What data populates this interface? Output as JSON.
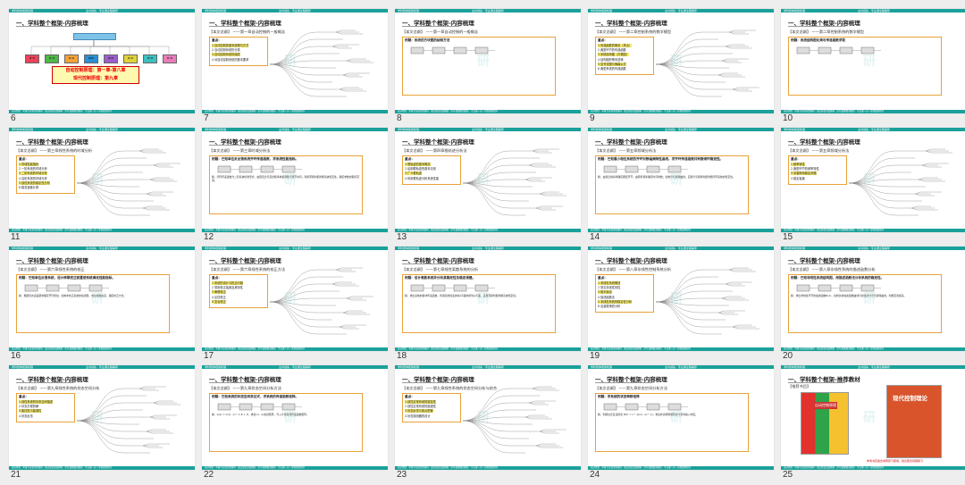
{
  "header": {
    "left": "学科整体框架梳理",
    "mid": "业内领先 · 专业课全程辅导"
  },
  "footer_text": "高分经验 · 考研专业课全程辅导 · 难点知识深度解析 · 历年真题精讲精练 · 专业课一对一全程规划指导",
  "main_title": "一、学科整个框架-内容梳理",
  "slides": [
    {
      "num": "6",
      "title": "一、学科整个框架-内容梳理",
      "red_text": "自动控制原理：第一章-第八章\n现代控制原理：第九章",
      "nodes": [
        "第一章",
        "第二章",
        "第三章",
        "第四章",
        "第五章",
        "第六章",
        "第七章",
        "第八章"
      ]
    },
    {
      "num": "7",
      "sub": "【本文总纲】 ——第一章自动控制的一般概念",
      "box_head": "重点：",
      "lines": [
        "1 自动控制的基本原理与方式",
        "2 自动控制系统的分类",
        "3 自动控制系统的组成",
        "4 对自动控制系统的基本要求"
      ]
    },
    {
      "num": "8",
      "sub": "【本文总纲】 ——第一章自动控制的一般概念",
      "box_head": "例题：系统的方块图的绘制方法"
    },
    {
      "num": "9",
      "sub": "【本文总纲】 ——第二章控制系统的数学模型",
      "box_head": "重点：",
      "lines": [
        "1 传递函数的概念（重点）",
        "2 典型环节的传递函数",
        "3 系统结构图（方框图）",
        "4 结构图的等效变换",
        "5 信号流图与梅森公式",
        "6 典型系统的传递函数"
      ]
    },
    {
      "num": "10",
      "sub": "【本文总纲】 ——第二章控制系统的数学模型",
      "box_head": "例题：系统结构图化简与传递函数求取"
    },
    {
      "num": "11",
      "sub": "【本文总纲】 ——第三章线性系统的时域分析",
      "box_head": "重点：",
      "lines": [
        "1 时域性能指标",
        "2 一阶系统的时域分析",
        "3 二阶系统的时域分析",
        "4 高阶系统的时域分析",
        "5 线性系统的稳定性分析",
        "6 稳态误差计算"
      ]
    },
    {
      "num": "12",
      "sub": "【本文总纲】 ——第三章时域分析法",
      "box_head": "例题：已知单位负反馈系统开环传递函数，求系统性能指标。",
      "para": "解：闭环传递函数为二阶系统标准形式，由阻尼比与自然频率求超调量与调节时间；利用劳斯判据判断系统稳定性，确定参数的取值范围。"
    },
    {
      "num": "13",
      "sub": "【本文总纲】 ——第四章根轨迹分析法",
      "box_head": "重点：",
      "lines": [
        "1 根轨迹的基本概念",
        "2 绘制根轨迹的基本法则",
        "3 广义根轨迹",
        "4 利用根轨迹分析系统性能"
      ]
    },
    {
      "num": "14",
      "sub": "【本文总纲】 ——第五章频域分析法",
      "box_head": "例题：已知最小相位系统的开环对数幅频特性曲线，求开环传递函数并判断闭环稳定性。",
      "para": "解：由渐近线斜率确定典型环节，由转折频率确定时间常数；绘制奈奎斯特曲线，应用奈奎斯特判据判断闭环系统的稳定性。"
    },
    {
      "num": "15",
      "sub": "【本文总纲】 ——第五章频域分析法",
      "box_head": "重点：",
      "lines": [
        "1 频率特性",
        "2 典型环节的频率特性",
        "3 奈奎斯特稳定判据",
        "4 稳定裕度"
      ]
    },
    {
      "num": "16",
      "sub": "【本文总纲】 ——第六章线性系统的校正",
      "box_head": "例题：已知单位反馈系统，设计串联校正装置使系统满足性能指标。",
      "para": "解：根据稳态误差要求确定开环增益，绘制未校正系统的伯德图，求出相角裕度，确定校正方式。"
    },
    {
      "num": "17",
      "sub": "【本文总纲】 ——第六章线性系统的校正方法",
      "box_head": "重点：",
      "lines": [
        "1 系统的设计与校正问题",
        "2 常用校正装置及其特性",
        "3 串联校正",
        "4 反馈校正",
        "5 复合校正"
      ]
    },
    {
      "num": "18",
      "sub": "【本文总纲】 ——第七章线性离散系统的分析",
      "box_head": "例题：设计离散系统并分析其稳定性及稳态误差。",
      "para": "解：求出系统的脉冲传递函数，利用双线性变换将z平面映射到w平面，应用劳斯判据判断系统稳定性。"
    },
    {
      "num": "19",
      "sub": "【本文总纲】 ——第八章非线性控制系统分析",
      "box_head": "重点：",
      "lines": [
        "1 非线性系统概述",
        "2 常见非线性特性",
        "3 相平面法",
        "4 描述函数法",
        "5 非线性系统的稳定性分析",
        "6 自激振荡的分析"
      ]
    },
    {
      "num": "20",
      "sub": "【本文总纲】 ——第八章非线性系统的描述函数分析",
      "box_head": "例题：已知非线性系统结构图，用描述函数法分析系统的稳定性。",
      "para": "解：求出非线性环节的描述函数N(A)，绘制负倒描述函数曲线与线性部分奈奎斯特曲线，判断自激振荡。"
    },
    {
      "num": "21",
      "sub": "【本文总纲】 ——第九章线性系统的状态空间分析",
      "box_head": "重点：",
      "lines": [
        "1 线性系统的状态空间描述",
        "2 状态方程的解",
        "3 能控性与能观性",
        "4 状态反馈"
      ]
    },
    {
      "num": "22",
      "sub": "【本文总纲】 ——第九章状态空间分析方法",
      "box_head": "例题：已知系统的状态空间表达式，求系统的传递函数矩阵。",
      "para": "解：G(s) = C(sI - A)^-1 B + D，求出(sI - A)的逆矩阵，代入计算得到传递函数矩阵。"
    },
    {
      "num": "23",
      "sub": "【本文总纲】 ——第九章线性系统的状态空间分析与综合",
      "box_head": "重点：",
      "lines": [
        "1 线性定常系统的能控性",
        "2 线性定常系统的能观性",
        "3 状态反馈与极点配置",
        "4 状态观测器的设计"
      ]
    },
    {
      "num": "24",
      "sub": "【本文总纲】 ——第九章状态空间分析方法",
      "box_head": "例题：求系统的状态转移矩阵",
      "para": "解：利用拉氏反变换法 Φ(t) = L^-1[(sI - A)^-1]，求出状态转移矩阵并计算零输入响应。"
    },
    {
      "num": "25",
      "title": "一、学科整个框架-推荐教材",
      "sub": "【推荐书目】",
      "book1": "自动控制原理",
      "book2": "现代控制理论",
      "caption": "参考书目适合考研复习使用，建议配合真题练习"
    }
  ]
}
